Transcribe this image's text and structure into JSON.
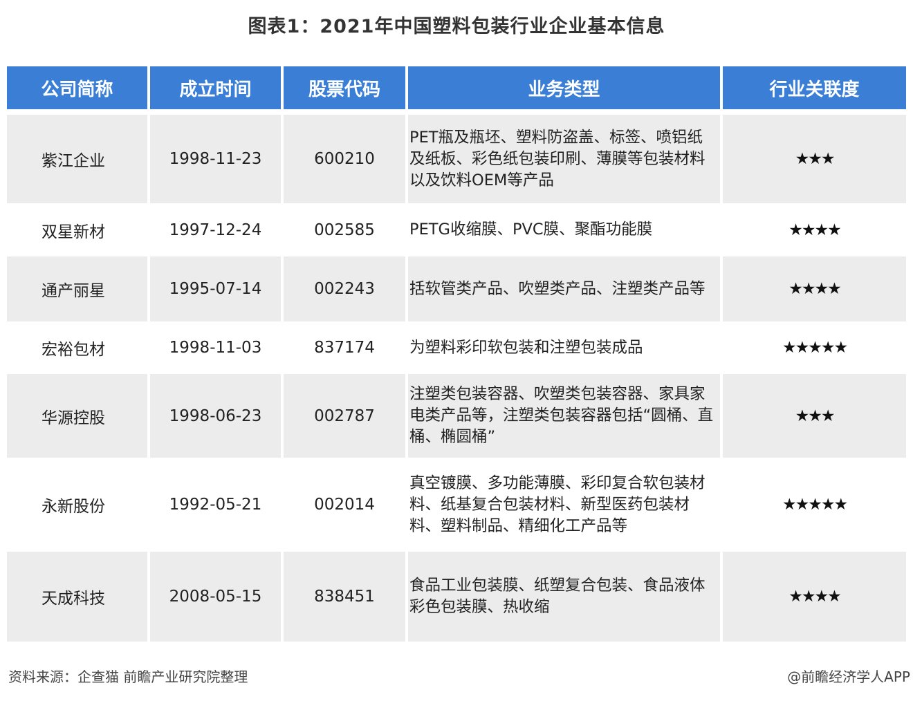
{
  "title": "图表1：2021年中国塑料包装行业企业基本信息",
  "columns": [
    "公司简称",
    "成立时间",
    "股票代码",
    "业务类型",
    "行业关联度"
  ],
  "colors": {
    "header_bg": "#3a7fd5",
    "alt_row_bg": "#ececec"
  },
  "rows": [
    {
      "name": "紫江企业",
      "founded": "1998-11-23",
      "code": "600210",
      "business": "PET瓶及瓶坯、塑料防盗盖、标签、喷铝纸及纸板、彩色纸包装印刷、薄膜等包装材料以及饮料OEM等产品",
      "stars": 3,
      "height": 128
    },
    {
      "name": "双星新材",
      "founded": "1997-12-24",
      "code": "002585",
      "business": "PETG收缩膜、PVC膜、聚酯功能膜",
      "stars": 4,
      "height": 71
    },
    {
      "name": "通产丽星",
      "founded": "1995-07-14",
      "code": "002243",
      "business": "括软管类产品、吹塑类产品、注塑类产品等",
      "stars": 4,
      "height": 94
    },
    {
      "name": "宏裕包材",
      "founded": "1998-11-03",
      "code": "837174",
      "business": "为塑料彩印软包装和注塑包装成品",
      "stars": 5,
      "height": 70
    },
    {
      "name": "华源控股",
      "founded": "1998-06-23",
      "code": "002787",
      "business": "注塑类包装容器、吹塑类包装容器、家具家电类产品等，注塑类包装容器包括“圆桶、直桶、椭圆桶”",
      "stars": 3,
      "height": 121
    },
    {
      "name": "永新股份",
      "founded": "1992-05-21",
      "code": "002014",
      "business": "真空镀膜、多功能薄膜、彩印复合软包装材料、纸基复合包装材料、新型医药包装材料、塑料制品、精细化工产品等",
      "stars": 5,
      "height": 130
    },
    {
      "name": "天成科技",
      "founded": "2008-05-15",
      "code": "838451",
      "business": "食品工业包装膜、纸塑复合包装、食品液体彩色包装膜、热收缩",
      "stars": 4,
      "height": 130
    }
  ],
  "footer": {
    "source": "资料来源：企查猫 前瞻产业研究院整理",
    "credit": "@前瞻经济学人APP"
  }
}
